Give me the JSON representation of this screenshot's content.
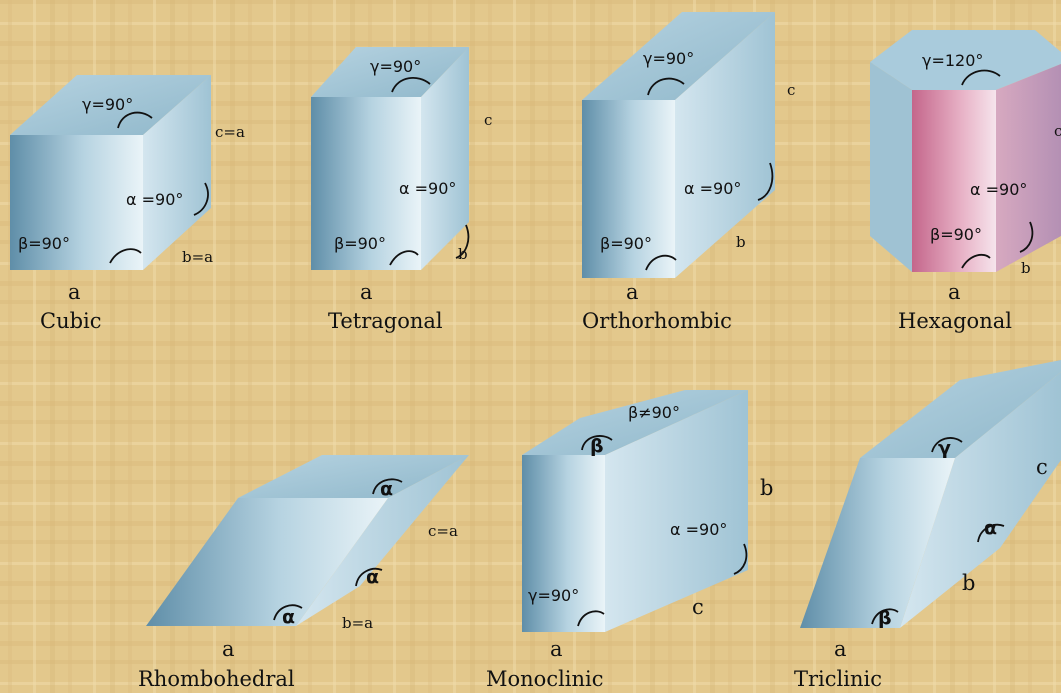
{
  "colors": {
    "background": "#e3c88c",
    "crystal_face_front": "#6d9cb3",
    "crystal_face_light": "#dcecf3",
    "crystal_face_side": "#a9cada",
    "hexagonal_tint": "#c86f92"
  },
  "systems": [
    {
      "id": "cubic",
      "name": "Cubic",
      "a": "a",
      "b": "b=a",
      "c": "c=a",
      "gamma": "γ=90°",
      "alpha": "α =90°",
      "beta": "β=90°"
    },
    {
      "id": "tetragonal",
      "name": "Tetragonal",
      "a": "a",
      "b": "b",
      "c": "c",
      "gamma": "γ=90°",
      "alpha": "α =90°",
      "beta": "β=90°"
    },
    {
      "id": "orthorhombic",
      "name": "Orthorhombic",
      "a": "a",
      "b": "b",
      "c": "c",
      "gamma": "γ=90°",
      "alpha": "α =90°",
      "beta": "β=90°"
    },
    {
      "id": "hexagonal",
      "name": "Hexagonal",
      "a": "a",
      "b": "b",
      "c": "c",
      "gamma": "γ=120°",
      "alpha": "α =90°",
      "beta": "β=90°"
    },
    {
      "id": "rhombohedral",
      "name": "Rhombohedral",
      "a": "a",
      "b": "b=a",
      "c": "c=a",
      "alpha": "α"
    },
    {
      "id": "monoclinic",
      "name": "Monoclinic",
      "a": "a",
      "b": "b",
      "c": "c",
      "beta_top": "β≠90°",
      "beta": "β",
      "alpha": "α =90°",
      "gamma": "γ=90°"
    },
    {
      "id": "triclinic",
      "name": "Triclinic",
      "a": "a",
      "b": "b",
      "c": "c",
      "gamma": "γ",
      "alpha": "α",
      "beta": "β"
    }
  ]
}
